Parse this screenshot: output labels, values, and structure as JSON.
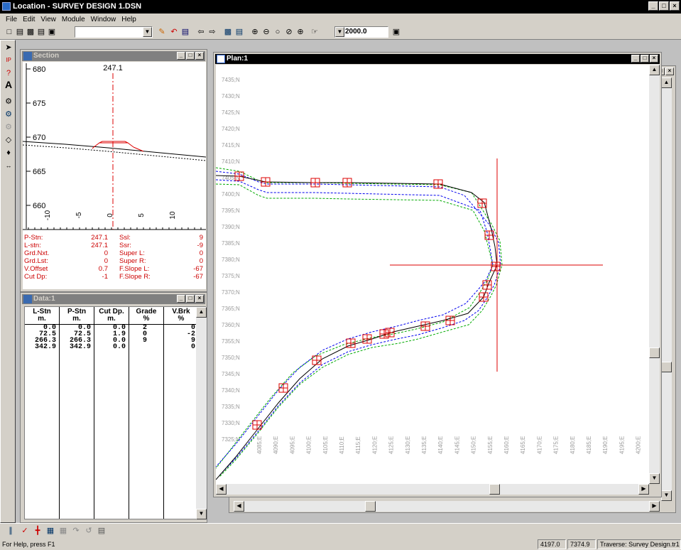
{
  "app": {
    "title": "Location - SURVEY DESIGN 1.DSN"
  },
  "menu": [
    "File",
    "Edit",
    "View",
    "Module",
    "Window",
    "Help"
  ],
  "toolbar": {
    "combo_value": "",
    "scale_value": "2000.0"
  },
  "section": {
    "title": "Section",
    "station_label": "247.1",
    "elevations": [
      "680",
      "675",
      "670",
      "665",
      "660"
    ],
    "offsets": [
      "-10",
      "-5",
      "0",
      "5",
      "10"
    ],
    "info_left": [
      {
        "label": "P-Stn:",
        "value": "247.1"
      },
      {
        "label": "L-stn:",
        "value": "247.1"
      },
      {
        "label": "Grd.Nxt.",
        "value": "0"
      },
      {
        "label": "Grd.Lst:",
        "value": "0"
      },
      {
        "label": "V.Offset",
        "value": "0.7"
      },
      {
        "label": "Cut Dp:",
        "value": "-1"
      }
    ],
    "info_right": [
      {
        "label": "Ssl:",
        "value": "9"
      },
      {
        "label": "Ssr:",
        "value": "-9"
      },
      {
        "label": "Super L:",
        "value": "0"
      },
      {
        "label": "Super R:",
        "value": "0"
      },
      {
        "label": "F.Slope L:",
        "value": "-67"
      },
      {
        "label": "F.Slope R:",
        "value": "-67"
      }
    ]
  },
  "data": {
    "title": "Data:1",
    "headers": [
      {
        "name": "L-Stn",
        "unit": "m."
      },
      {
        "name": "P-Stn",
        "unit": "m."
      },
      {
        "name": "Cut Dp.",
        "unit": "m."
      },
      {
        "name": "Grade",
        "unit": "%"
      },
      {
        "name": "V.Brk",
        "unit": "%"
      }
    ],
    "columns": [
      [
        "0.0",
        "72.5",
        "266.3",
        "342.9"
      ],
      [
        "0.0",
        "72.5",
        "266.3",
        "342.9"
      ],
      [
        "0.0",
        "1.9",
        "0.0",
        "0.0"
      ],
      [
        "",
        "2",
        "0",
        "9"
      ],
      [
        "0",
        "-2",
        "9",
        "0"
      ]
    ]
  },
  "plan": {
    "title": "Plan:1",
    "northings": [
      "7435;N",
      "7430;N",
      "7425;N",
      "7420;N",
      "7415;N",
      "7410;N",
      "7405;N",
      "7400;N",
      "7395;N",
      "7390;N",
      "7385;N",
      "7380;N",
      "7375;N",
      "7370;N",
      "7365;N",
      "7360;N",
      "7355;N",
      "7350;N",
      "7345;N",
      "7340;N",
      "7335;N",
      "7330;N",
      "7325;N"
    ],
    "eastings": [
      "4085;E",
      "4090;E",
      "4095;E",
      "4100;E",
      "4105;E",
      "4110;E",
      "4115;E",
      "4120;E",
      "4125;E",
      "4130;E",
      "4135;E",
      "4140;E",
      "4145;E",
      "4150;E",
      "4155;E",
      "4160;E",
      "4165;E",
      "4170;E",
      "4175;E",
      "4180;E",
      "4185;E",
      "4190;E",
      "4195;E",
      "4200;E"
    ]
  },
  "status": {
    "help": "For Help, press F1",
    "easting": "4197.0",
    "northing": "7374.9",
    "traverse": "Traverse: Survey Design.tr1"
  },
  "colors": {
    "accent_red": "#dd0000",
    "offset_blue": "#0000ee",
    "offset_green": "#00aa00",
    "grid_label": "#9a9a9a"
  }
}
